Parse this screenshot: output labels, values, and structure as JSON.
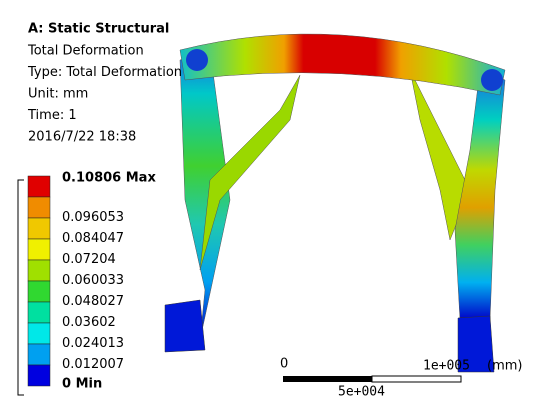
{
  "header": {
    "title": "A: Static Structural",
    "lines": [
      "Total Deformation",
      "Type: Total Deformation",
      "Unit: mm",
      "Time: 1",
      "2016/7/22 18:38"
    ]
  },
  "legend": {
    "entries": [
      {
        "label": "0.10806 Max",
        "color": "#e00000"
      },
      {
        "label": "0.096053",
        "color": "#f08c00"
      },
      {
        "label": "0.084047",
        "color": "#f0c800"
      },
      {
        "label": "0.07204",
        "color": "#f0f000"
      },
      {
        "label": "0.060033",
        "color": "#a0e000"
      },
      {
        "label": "0.048027",
        "color": "#30d830"
      },
      {
        "label": "0.03602",
        "color": "#00e0a0"
      },
      {
        "label": "0.024013",
        "color": "#00e8e8"
      },
      {
        "label": "0.012007",
        "color": "#00a0f0"
      },
      {
        "label": "0 Min",
        "color": "#0000e0"
      }
    ]
  },
  "scale_bar": {
    "start": "0",
    "end": "1e+005",
    "unit": "(mm)",
    "mid": "5e+004"
  }
}
